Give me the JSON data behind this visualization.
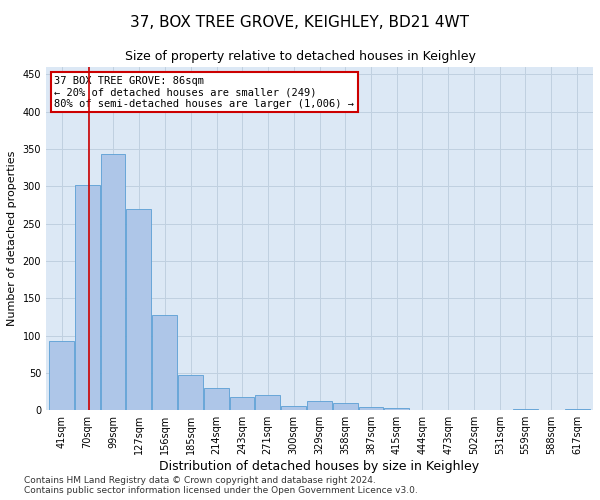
{
  "title": "37, BOX TREE GROVE, KEIGHLEY, BD21 4WT",
  "subtitle": "Size of property relative to detached houses in Keighley",
  "xlabel": "Distribution of detached houses by size in Keighley",
  "ylabel": "Number of detached properties",
  "bar_color": "#aec6e8",
  "bar_edge_color": "#5a9fd4",
  "background_color": "#ffffff",
  "plot_bg_color": "#dce8f5",
  "grid_color": "#c0d0e0",
  "annotation_box_color": "#cc0000",
  "annotation_text": "37 BOX TREE GROVE: 86sqm\n← 20% of detached houses are smaller (249)\n80% of semi-detached houses are larger (1,006) →",
  "vline_x": 86,
  "vline_color": "#cc0000",
  "categories": [
    "41sqm",
    "70sqm",
    "99sqm",
    "127sqm",
    "156sqm",
    "185sqm",
    "214sqm",
    "243sqm",
    "271sqm",
    "300sqm",
    "329sqm",
    "358sqm",
    "387sqm",
    "415sqm",
    "444sqm",
    "473sqm",
    "502sqm",
    "531sqm",
    "559sqm",
    "588sqm",
    "617sqm"
  ],
  "bin_edges": [
    41,
    70,
    99,
    127,
    156,
    185,
    214,
    243,
    271,
    300,
    329,
    358,
    387,
    415,
    444,
    473,
    502,
    531,
    559,
    588,
    617,
    646
  ],
  "values": [
    93,
    302,
    343,
    270,
    128,
    47,
    30,
    18,
    20,
    6,
    12,
    10,
    5,
    3,
    0,
    0,
    1,
    0,
    2,
    0,
    2
  ],
  "ylim": [
    0,
    460
  ],
  "yticks": [
    0,
    50,
    100,
    150,
    200,
    250,
    300,
    350,
    400,
    450
  ],
  "footer": "Contains HM Land Registry data © Crown copyright and database right 2024.\nContains public sector information licensed under the Open Government Licence v3.0.",
  "title_fontsize": 11,
  "subtitle_fontsize": 9,
  "ylabel_fontsize": 8,
  "xlabel_fontsize": 9,
  "tick_fontsize": 7,
  "footer_fontsize": 6.5
}
